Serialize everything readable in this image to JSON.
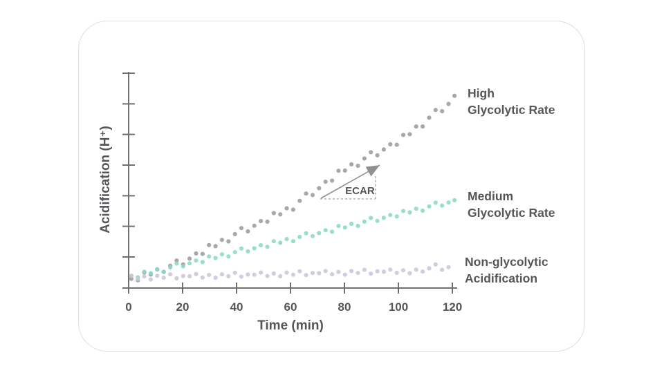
{
  "page": {
    "background": "#ffffff",
    "card_border": "#dedede",
    "text_color": "#55565a",
    "axis_color": "#6e6f71"
  },
  "chart_data": {
    "type": "scatter",
    "title": "",
    "xlabel": "Time (min)",
    "ylabel": "Acidification (H⁺)",
    "x_ticks": [
      "0",
      "20",
      "40",
      "60",
      "80",
      "100",
      "120"
    ],
    "xlim": [
      0,
      120
    ],
    "ylim": [
      0,
      100
    ],
    "y_tick_count": 7,
    "y_tick_labels_visible": false,
    "grid": false,
    "legend_position": "right-of-series-end",
    "series": [
      {
        "name": "High Glycolytic Rate",
        "label_lines": [
          "High",
          "Glycolytic Rate"
        ],
        "color": "#9c9c9c",
        "points": [
          [
            1,
            4.3
          ],
          [
            3.4,
            3.6
          ],
          [
            5.8,
            7.2
          ],
          [
            8.2,
            6.3
          ],
          [
            10.6,
            8.7
          ],
          [
            13,
            7.5
          ],
          [
            15.4,
            10.4
          ],
          [
            17.8,
            12.8
          ],
          [
            20.2,
            11
          ],
          [
            22.6,
            13.7
          ],
          [
            25,
            16.1
          ],
          [
            27.4,
            15.9
          ],
          [
            29.8,
            20
          ],
          [
            32.2,
            19.5
          ],
          [
            34.6,
            22.4
          ],
          [
            37,
            21.7
          ],
          [
            39.4,
            25.1
          ],
          [
            41.8,
            27.9
          ],
          [
            44.2,
            26.4
          ],
          [
            46.6,
            29
          ],
          [
            49,
            31.2
          ],
          [
            51.4,
            30.9
          ],
          [
            53.8,
            34.9
          ],
          [
            56.2,
            34.3
          ],
          [
            58.6,
            37.1
          ],
          [
            61,
            36.5
          ],
          [
            63.4,
            40.6
          ],
          [
            65.8,
            44
          ],
          [
            68.2,
            43.3
          ],
          [
            70.6,
            46.5
          ],
          [
            73,
            49.5
          ],
          [
            75.4,
            50
          ],
          [
            77.8,
            54.6
          ],
          [
            80.2,
            54.7
          ],
          [
            82.6,
            57.6
          ],
          [
            85,
            56.9
          ],
          [
            87.4,
            60.3
          ],
          [
            89.8,
            63.2
          ],
          [
            92.2,
            61.8
          ],
          [
            94.6,
            64.5
          ],
          [
            97,
            66.9
          ],
          [
            99.4,
            66.7
          ],
          [
            101.8,
            71.3
          ],
          [
            104.2,
            71.6
          ],
          [
            106.6,
            75.2
          ],
          [
            109,
            75.2
          ],
          [
            111.4,
            79.3
          ],
          [
            113.8,
            82.9
          ],
          [
            116.2,
            82.3
          ],
          [
            118.6,
            85.7
          ],
          [
            120.8,
            89.5
          ]
        ]
      },
      {
        "name": "Medium Glycolytic Rate",
        "label_lines": [
          "Medium",
          "Glycolytic Rate"
        ],
        "color": "#8ad9c5",
        "points": [
          [
            1,
            5.7
          ],
          [
            3.4,
            5
          ],
          [
            5.8,
            7.6
          ],
          [
            8.2,
            6.9
          ],
          [
            10.6,
            8.6
          ],
          [
            13,
            7.6
          ],
          [
            15.4,
            9.6
          ],
          [
            17.8,
            11.4
          ],
          [
            20.2,
            10.1
          ],
          [
            22.6,
            11.5
          ],
          [
            25,
            12.8
          ],
          [
            27.4,
            12.1
          ],
          [
            29.8,
            14.7
          ],
          [
            32.2,
            14
          ],
          [
            34.6,
            15.7
          ],
          [
            37,
            14.7
          ],
          [
            39.4,
            16.7
          ],
          [
            41.8,
            18.4
          ],
          [
            44.2,
            17.1
          ],
          [
            46.6,
            18.5
          ],
          [
            49,
            19.9
          ],
          [
            51.4,
            19.2
          ],
          [
            53.8,
            21.8
          ],
          [
            56.2,
            21.1
          ],
          [
            58.6,
            22.8
          ],
          [
            61,
            21.8
          ],
          [
            63.4,
            23.8
          ],
          [
            65.8,
            25.5
          ],
          [
            68.2,
            24.2
          ],
          [
            70.6,
            25.6
          ],
          [
            73,
            26.9
          ],
          [
            75.4,
            26.2
          ],
          [
            77.8,
            28.9
          ],
          [
            80.2,
            28.2
          ],
          [
            82.6,
            29.9
          ],
          [
            85,
            28.9
          ],
          [
            87.4,
            30.9
          ],
          [
            89.8,
            32.6
          ],
          [
            92.2,
            31.3
          ],
          [
            94.6,
            32.7
          ],
          [
            97,
            34
          ],
          [
            99.4,
            33.3
          ],
          [
            101.8,
            35.9
          ],
          [
            104.2,
            35.2
          ],
          [
            106.6,
            36.9
          ],
          [
            109,
            36
          ],
          [
            111.4,
            38
          ],
          [
            113.8,
            39.7
          ],
          [
            116.2,
            38.4
          ],
          [
            118.6,
            39.8
          ],
          [
            120.8,
            40.9
          ]
        ]
      },
      {
        "name": "Non-glycolytic Acidification",
        "label_lines": [
          "Non-glycolytic",
          "Acidification"
        ],
        "color": "#cfc4dc",
        "points": [
          [
            1,
            5.7
          ],
          [
            3.4,
            4.2
          ],
          [
            5.8,
            5.4
          ],
          [
            8.2,
            4
          ],
          [
            10.6,
            5.7
          ],
          [
            13,
            4.8
          ],
          [
            15.4,
            6.4
          ],
          [
            17.8,
            4.5
          ],
          [
            20.2,
            5.6
          ],
          [
            22.6,
            5.5
          ],
          [
            25,
            6.5
          ],
          [
            27.4,
            4.9
          ],
          [
            29.8,
            6.1
          ],
          [
            32.2,
            4.8
          ],
          [
            34.6,
            6.4
          ],
          [
            37,
            5.5
          ],
          [
            39.4,
            7.1
          ],
          [
            41.8,
            5.3
          ],
          [
            44.2,
            6.3
          ],
          [
            46.6,
            6.2
          ],
          [
            49,
            7.2
          ],
          [
            51.4,
            5.6
          ],
          [
            53.8,
            6.8
          ],
          [
            56.2,
            5.5
          ],
          [
            58.6,
            7.2
          ],
          [
            61,
            6.2
          ],
          [
            63.4,
            7.8
          ],
          [
            65.8,
            6
          ],
          [
            68.2,
            7
          ],
          [
            70.6,
            6.9
          ],
          [
            73,
            7.9
          ],
          [
            75.4,
            6.4
          ],
          [
            77.8,
            7.5
          ],
          [
            80.2,
            6.2
          ],
          [
            82.6,
            7.9
          ],
          [
            85,
            7
          ],
          [
            87.4,
            8.5
          ],
          [
            89.8,
            6.7
          ],
          [
            92.2,
            7.8
          ],
          [
            94.6,
            7.6
          ],
          [
            97,
            8.6
          ],
          [
            99.4,
            7.1
          ],
          [
            101.8,
            8.3
          ],
          [
            104.2,
            6.9
          ],
          [
            106.6,
            8.6
          ],
          [
            109,
            7.7
          ],
          [
            111.4,
            9.2
          ],
          [
            113.8,
            11
          ],
          [
            116.2,
            8.5
          ],
          [
            118.6,
            9.7
          ]
        ]
      }
    ],
    "annotation": {
      "label": "ECAR",
      "type": "slope-arrow-triangle",
      "base_start": [
        71,
        41.5
      ],
      "base_end": [
        91.5,
        41.5
      ],
      "rise_top": [
        91.5,
        52.5
      ],
      "arrow_start": [
        71.3,
        41.8
      ],
      "arrow_tip": [
        93.1,
        57.2
      ],
      "label_anchor": [
        80.3,
        43.8
      ],
      "line_color": "#8f9092",
      "dash_color": "#b4b4b6"
    }
  }
}
